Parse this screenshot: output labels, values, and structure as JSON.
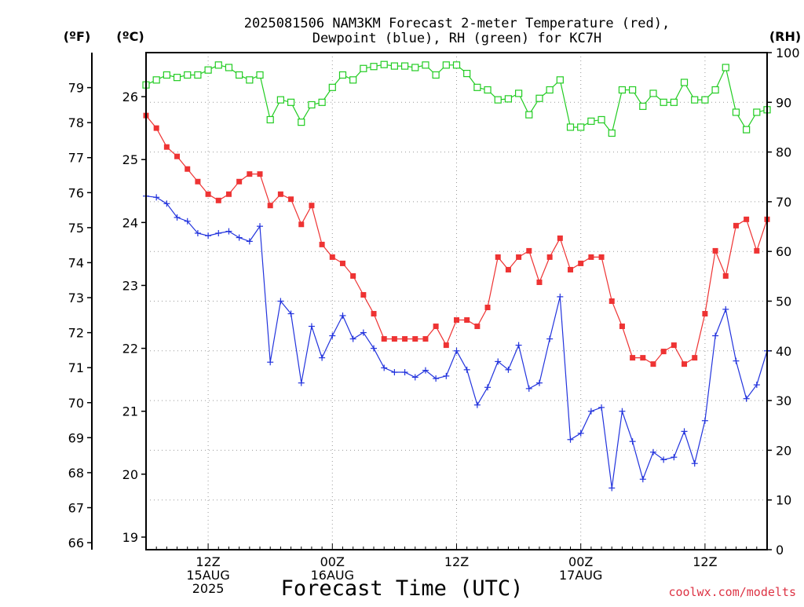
{
  "chart_data": {
    "type": "line",
    "title_lines": [
      "2025081506 NAM3KM Forecast 2-meter Temperature (red),",
      "Dewpoint (blue), RH (green) for KC7H"
    ],
    "xlabel": "Forecast Time (UTC)",
    "watermark": "coolwx.com/modelts",
    "left_f_axis": {
      "label": "(ºF)",
      "range": [
        65.8,
        80.0
      ],
      "ticks": [
        "79",
        "78",
        "77",
        "76",
        "75",
        "74",
        "73",
        "72",
        "71",
        "70",
        "69",
        "68",
        "67",
        "66"
      ]
    },
    "left_c_axis": {
      "label": "(ºC)",
      "range": [
        18.8,
        26.7
      ],
      "ticks": [
        "26",
        "25",
        "24",
        "23",
        "22",
        "21",
        "20",
        "19"
      ]
    },
    "right_rh_axis": {
      "label": "(RH)",
      "range": [
        0,
        100
      ],
      "ticks": [
        "100",
        "90",
        "80",
        "70",
        "60",
        "50",
        "40",
        "30",
        "20",
        "10",
        "0"
      ]
    },
    "x_range_hours": [
      6,
      66
    ],
    "x_ticks": [
      {
        "hour": 12,
        "lines": [
          "12Z",
          "15AUG",
          "2025"
        ]
      },
      {
        "hour": 24,
        "lines": [
          "00Z",
          "16AUG"
        ]
      },
      {
        "hour": 36,
        "lines": [
          "12Z"
        ]
      },
      {
        "hour": 48,
        "lines": [
          "00Z",
          "17AUG"
        ]
      },
      {
        "hour": 60,
        "lines": [
          "12Z"
        ]
      }
    ],
    "x_hours": [
      6,
      7,
      8,
      9,
      10,
      11,
      12,
      13,
      14,
      15,
      16,
      17,
      18,
      19,
      20,
      21,
      22,
      23,
      24,
      25,
      26,
      27,
      28,
      29,
      30,
      31,
      32,
      33,
      34,
      35,
      36,
      37,
      38,
      39,
      40,
      41,
      42,
      43,
      44,
      45,
      46,
      47,
      48,
      49,
      50,
      51,
      52,
      53,
      54,
      55,
      56,
      57,
      58,
      59,
      60,
      61,
      62,
      63,
      64,
      65,
      66
    ],
    "grid": true,
    "series": [
      {
        "name": "Temperature",
        "unit": "°C",
        "axis": "left_c",
        "color": "#ee3333",
        "marker": "filled-square",
        "values": [
          25.7,
          25.5,
          25.2,
          25.05,
          24.85,
          24.65,
          24.45,
          24.35,
          24.45,
          24.65,
          24.77,
          24.77,
          24.27,
          24.45,
          24.37,
          23.97,
          24.27,
          23.65,
          23.45,
          23.35,
          23.15,
          22.85,
          22.55,
          22.15,
          22.15,
          22.15,
          22.15,
          22.15,
          22.35,
          22.05,
          22.45,
          22.45,
          22.35,
          22.65,
          23.45,
          23.25,
          23.45,
          23.55,
          23.05,
          23.45,
          23.75,
          23.25,
          23.35,
          23.45,
          23.45,
          22.75,
          22.35,
          21.85,
          21.85,
          21.75,
          21.95,
          22.05,
          21.75,
          21.85,
          22.55,
          23.55,
          23.15,
          23.95,
          24.05,
          23.55,
          24.05
        ]
      },
      {
        "name": "Dewpoint",
        "unit": "°C",
        "axis": "left_c",
        "color": "#2233dd",
        "marker": "plus",
        "values": [
          24.42,
          24.4,
          24.3,
          24.08,
          24.02,
          23.83,
          23.79,
          23.83,
          23.86,
          23.76,
          23.7,
          23.94,
          21.78,
          22.75,
          22.55,
          21.45,
          22.35,
          21.85,
          22.2,
          22.52,
          22.15,
          22.25,
          22.0,
          21.69,
          21.62,
          21.62,
          21.54,
          21.65,
          21.52,
          21.56,
          21.96,
          21.66,
          21.1,
          21.38,
          21.79,
          21.66,
          22.05,
          21.36,
          21.45,
          22.15,
          22.82,
          20.55,
          20.65,
          21.0,
          21.06,
          19.78,
          21.0,
          20.52,
          19.92,
          20.35,
          20.23,
          20.27,
          20.68,
          20.17,
          20.85,
          22.2,
          22.62,
          21.8,
          21.2,
          21.42,
          21.96
        ]
      },
      {
        "name": "RH",
        "unit": "%",
        "axis": "right_rh",
        "color": "#22cc22",
        "marker": "open-square",
        "values": [
          93.5,
          94.5,
          95.5,
          95,
          95.5,
          95.5,
          96.5,
          97.5,
          97,
          95.5,
          94.5,
          95.5,
          86.5,
          90.5,
          90,
          86,
          89.5,
          90,
          93,
          95.5,
          94.5,
          96.8,
          97.2,
          97.6,
          97.3,
          97.3,
          97,
          97.5,
          95.5,
          97.5,
          97.5,
          95.8,
          93,
          92.5,
          90.5,
          90.7,
          91.8,
          87.5,
          90.8,
          92.5,
          94.5,
          85,
          85,
          86.2,
          86.5,
          83.8,
          92.5,
          92.5,
          89.2,
          91.8,
          90,
          90,
          94,
          90.5,
          90.5,
          92.5,
          97,
          88,
          84.5,
          88,
          88.5
        ]
      }
    ]
  }
}
